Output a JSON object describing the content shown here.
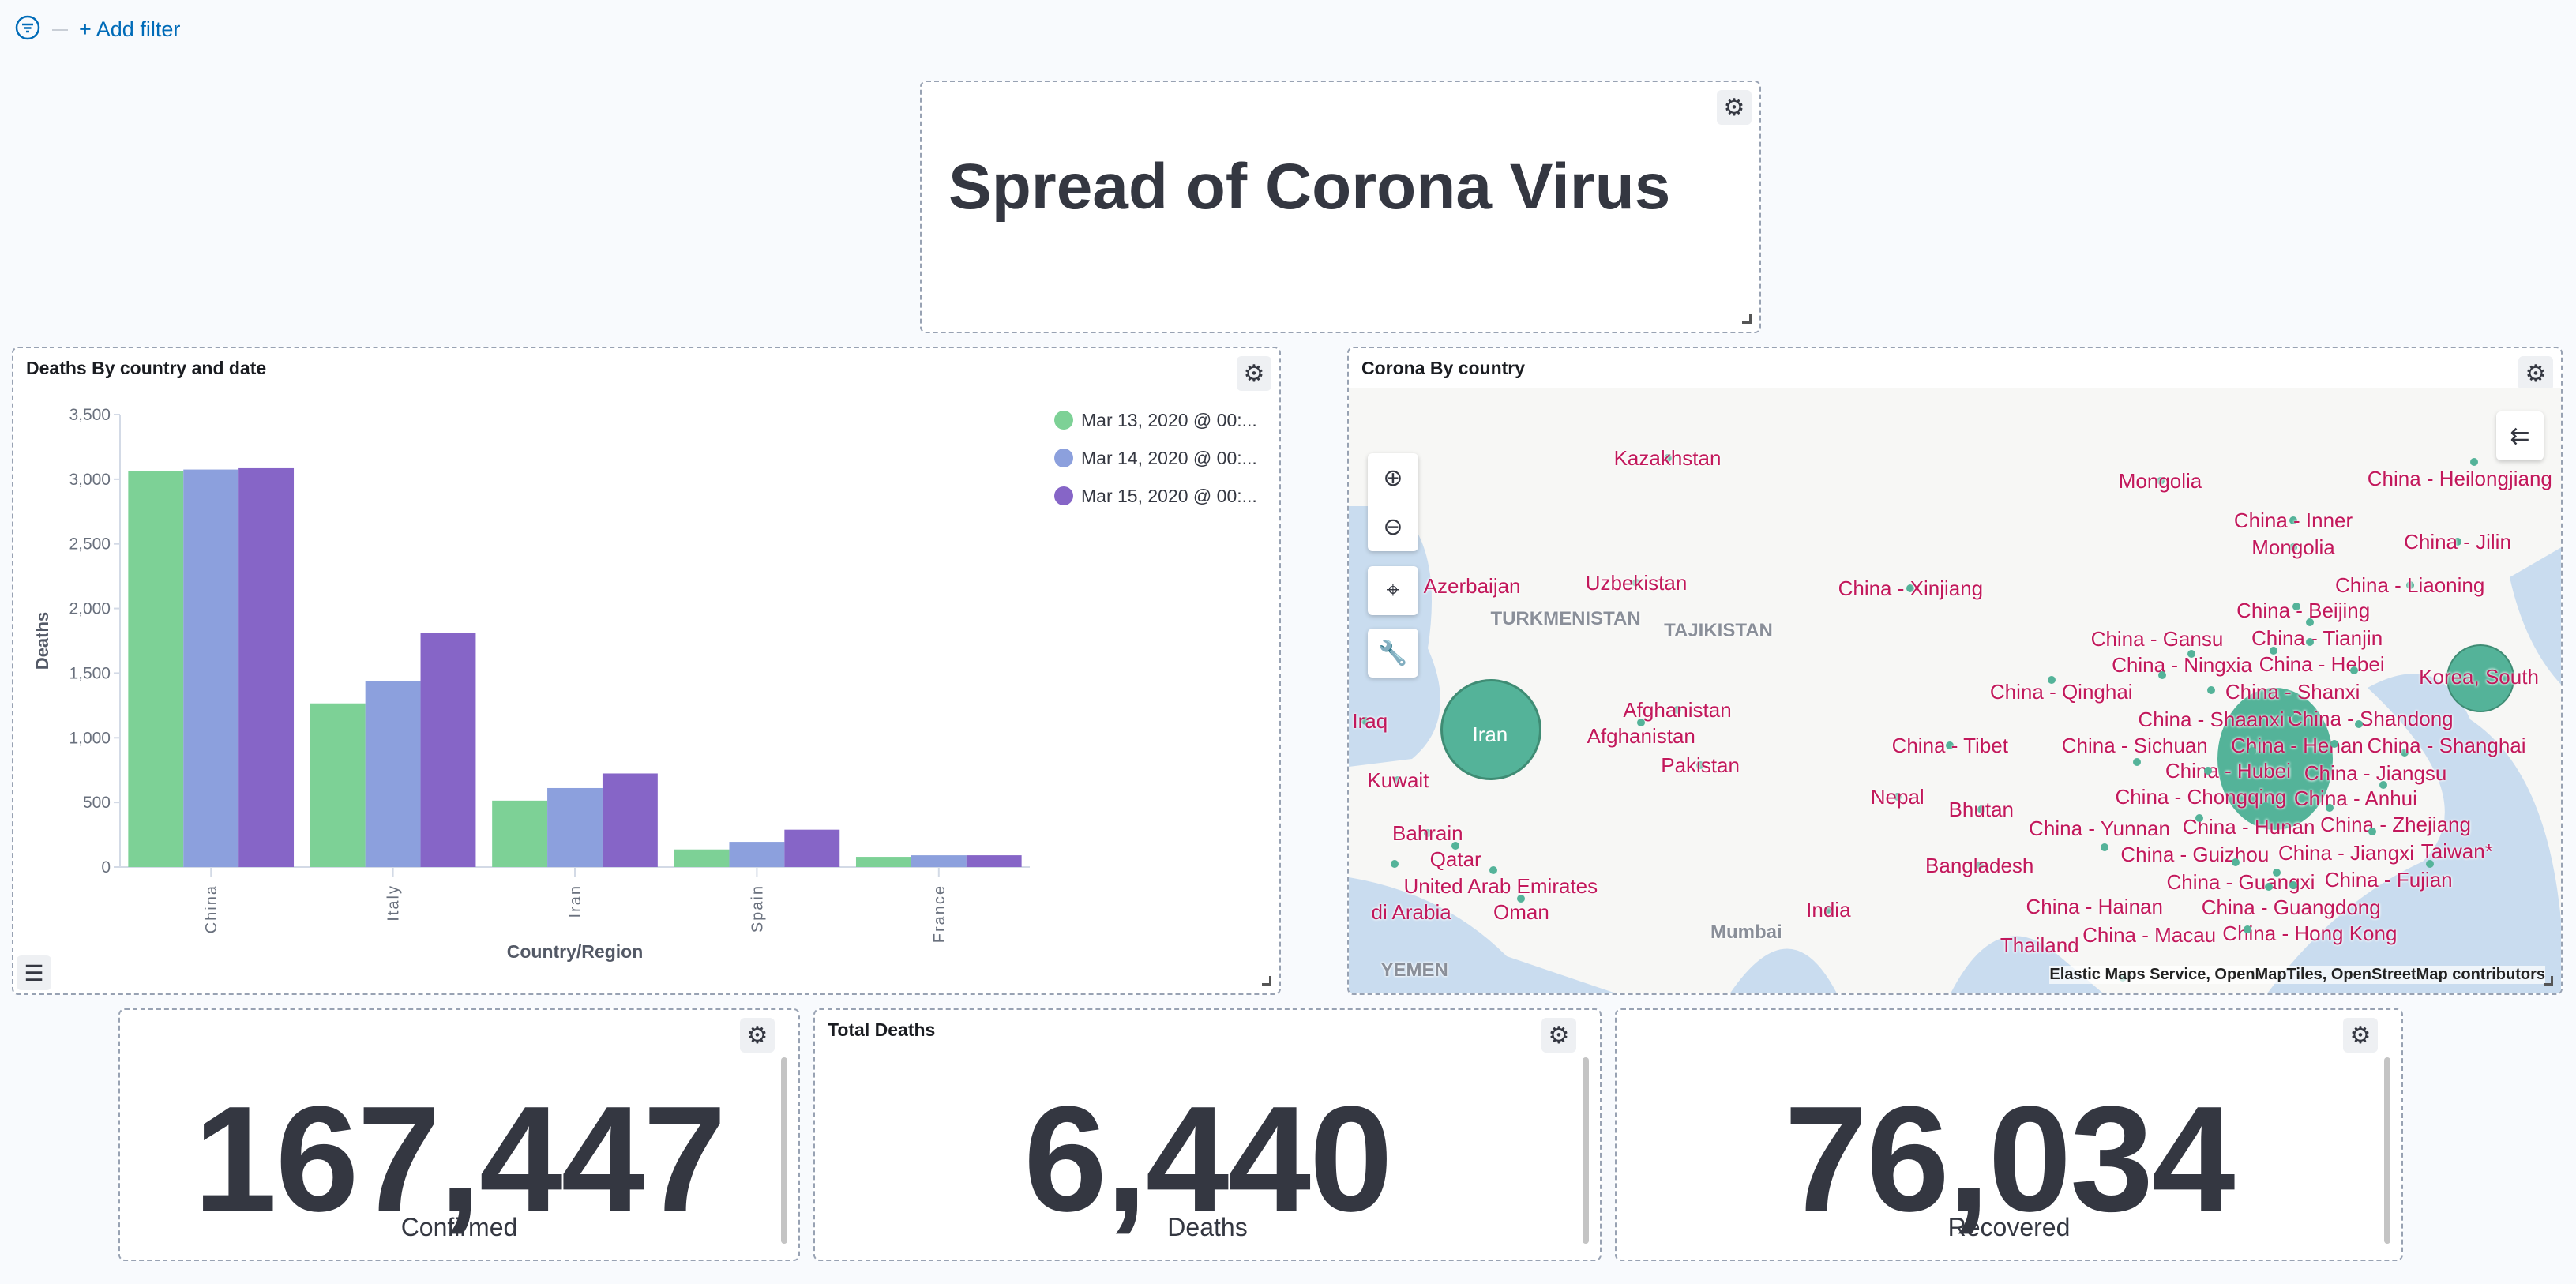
{
  "filter": {
    "add_label": "+ Add filter"
  },
  "title_panel": {
    "text": "Spread of Corona Virus"
  },
  "chart_panel": {
    "title": "Deaths By country and date"
  },
  "chart_data": {
    "type": "bar",
    "title": "Deaths By country and date",
    "xlabel": "Country/Region",
    "ylabel": "Deaths",
    "categories": [
      "China",
      "Italy",
      "Iran",
      "Spain",
      "France"
    ],
    "ylim": [
      0,
      3500
    ],
    "yticks": [
      "0",
      "500",
      "1,000",
      "1,500",
      "2,000",
      "2,500",
      "3,000",
      "3,500"
    ],
    "legend_position": "top-right",
    "series": [
      {
        "name": "Mar 13, 2020 @ 00:...",
        "color": "#7dd196",
        "values": [
          3062,
          1266,
          514,
          136,
          79
        ]
      },
      {
        "name": "Mar 14, 2020 @ 00:...",
        "color": "#8ca0dd",
        "values": [
          3075,
          1441,
          611,
          195,
          91
        ]
      },
      {
        "name": "Mar 15, 2020 @ 00:...",
        "color": "#8665c7",
        "values": [
          3085,
          1809,
          724,
          289,
          91
        ]
      }
    ]
  },
  "map_panel": {
    "title": "Corona By country",
    "attribution": "Elastic Maps Service, OpenMapTiles, OpenStreetMap contributors",
    "labels": [
      {
        "t": "Kazakhstan"
      },
      {
        "t": "Mongolia"
      },
      {
        "t": "China - Inner"
      },
      {
        "t": "Mongolia"
      },
      {
        "t": "China - Heilongjiang"
      },
      {
        "t": "China - Jilin"
      },
      {
        "t": "Uzbekistan"
      },
      {
        "t": "China - Xinjiang"
      },
      {
        "t": "China - Liaoning"
      },
      {
        "t": "China - Beijing"
      },
      {
        "t": "China - Tianjin"
      },
      {
        "t": "TURKMENISTAN",
        "c": "grey"
      },
      {
        "t": "TAJIKISTAN",
        "c": "grey"
      },
      {
        "t": "China - Hebei"
      },
      {
        "t": "China - Ningxia"
      },
      {
        "t": "China - Shanxi"
      },
      {
        "t": "China - Shandong"
      },
      {
        "t": "Korea, South"
      },
      {
        "t": "China - Qinghai"
      },
      {
        "t": "China - Gansu"
      },
      {
        "t": "China - Shaanxi"
      },
      {
        "t": "Afghanistan"
      },
      {
        "t": "Afghanistan"
      },
      {
        "t": "Iran",
        "c": "white"
      },
      {
        "t": "China - Henan"
      },
      {
        "t": "China - Jiangsu"
      },
      {
        "t": "China - Anhui"
      },
      {
        "t": "China - Shanghai"
      },
      {
        "t": "China - Tibet"
      },
      {
        "t": "China - Hubei"
      },
      {
        "t": "China - Sichuan"
      },
      {
        "t": "China - Chongqing"
      },
      {
        "t": "Pakistan"
      },
      {
        "t": "China - Zhejiang"
      },
      {
        "t": "Kuwait"
      },
      {
        "t": "Nepal"
      },
      {
        "t": "China - Hunan"
      },
      {
        "t": "China - Jiangxi"
      },
      {
        "t": "Bhutan"
      },
      {
        "t": "China - Guizhou"
      },
      {
        "t": "China - Fujian"
      },
      {
        "t": "Bahrain"
      },
      {
        "t": "Qatar"
      },
      {
        "t": "China - Yunnan"
      },
      {
        "t": "United Arab Emirates"
      },
      {
        "t": "di Arabia"
      },
      {
        "t": "Bangladesh"
      },
      {
        "t": "China - Guangxi"
      },
      {
        "t": "Taiwan*"
      },
      {
        "t": "China - Guangdong"
      },
      {
        "t": "China - Hong Kong"
      },
      {
        "t": "China - Macau"
      },
      {
        "t": "Oman"
      },
      {
        "t": "India"
      },
      {
        "t": "Mumbai",
        "c": "grey"
      },
      {
        "t": "China - Hainan"
      },
      {
        "t": "YEMEN",
        "c": "grey"
      },
      {
        "t": "Thailand"
      },
      {
        "t": "Iraq"
      },
      {
        "t": "Azerbaijan"
      }
    ]
  },
  "metrics": [
    {
      "value": "167,447",
      "label": "Confirmed",
      "title": ""
    },
    {
      "value": "6,440",
      "label": "Deaths",
      "title": "Total Deaths"
    },
    {
      "value": "76,034",
      "label": "Recovered",
      "title": ""
    }
  ],
  "colors": {
    "accent": "#006bb8",
    "map_marker": "#54b399",
    "map_label": "#c2185b"
  }
}
